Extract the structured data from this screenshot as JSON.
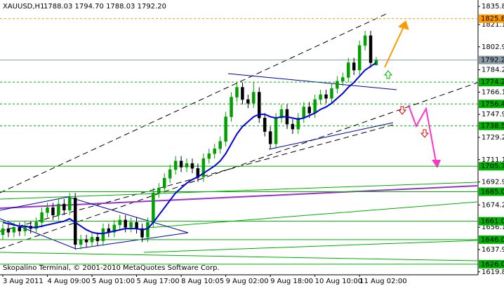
{
  "chart_data": {
    "type": "candlestick",
    "title": "XAUUSD,H1",
    "subtitle": "1788.03 1794.70 1788.03 1792.20",
    "footer": "Skopalino Terminal, © 2001-2010 MetaQuotes Software Corp.",
    "categories": [
      "3 Aug 2011",
      null,
      null,
      null,
      null,
      null,
      null,
      null,
      "4 Aug 09:00",
      null,
      null,
      null,
      null,
      null,
      null,
      null,
      "5 Aug 01:00",
      null,
      null,
      null,
      null,
      null,
      null,
      null,
      "5 Aug 17:00",
      null,
      null,
      null,
      null,
      null,
      null,
      null,
      "8 Aug 10:05",
      null,
      null,
      null,
      null,
      null,
      null,
      null,
      "9 Aug 02:00",
      null,
      null,
      null,
      null,
      null,
      null,
      null,
      "9 Aug 18:00",
      null,
      null,
      null,
      null,
      null,
      null,
      null,
      "10 Aug 10:00",
      null,
      null,
      null,
      null,
      null,
      null,
      null,
      "11 Aug 02:00",
      null,
      null,
      null
    ],
    "open": [
      1650,
      1655,
      1652,
      1656,
      1653,
      1657,
      1655,
      1660,
      1668,
      1672,
      1666,
      1675,
      1670,
      1680,
      1642,
      1646,
      1644,
      1648,
      1645,
      1655,
      1652,
      1658,
      1662,
      1656,
      1660,
      1655,
      1648,
      1660,
      1684,
      1688,
      1696,
      1703,
      1710,
      1705,
      1708,
      1704,
      1697,
      1712,
      1716,
      1720,
      1726,
      1746,
      1762,
      1770,
      1760,
      1757,
      1766,
      1745,
      1734,
      1724,
      1745,
      1752,
      1740,
      1736,
      1745,
      1754,
      1749,
      1760,
      1764,
      1761,
      1769,
      1775,
      1778,
      1790,
      1784,
      1804,
      1812,
      1788.03
    ],
    "high": [
      1659,
      1659,
      1660,
      1660,
      1661,
      1661,
      1664,
      1672,
      1676,
      1676,
      1679,
      1679,
      1684,
      1684,
      1650,
      1650,
      1652,
      1652,
      1659,
      1659,
      1662,
      1666,
      1666,
      1664,
      1664,
      1659,
      1664,
      1688,
      1692,
      1700,
      1707,
      1714,
      1714,
      1712,
      1712,
      1708,
      1716,
      1720,
      1724,
      1730,
      1750,
      1766,
      1774,
      1774,
      1764,
      1774,
      1770,
      1749,
      1738,
      1749,
      1756,
      1756,
      1744,
      1749,
      1758,
      1758,
      1764,
      1768,
      1768,
      1773,
      1779,
      1782,
      1794,
      1794,
      1808,
      1816,
      1816,
      1794.7
    ],
    "low": [
      1646,
      1648,
      1648,
      1649,
      1649,
      1651,
      1651,
      1656,
      1664,
      1662,
      1662,
      1666,
      1666,
      1638,
      1638,
      1640,
      1640,
      1641,
      1641,
      1648,
      1648,
      1654,
      1652,
      1652,
      1651,
      1644,
      1644,
      1656,
      1680,
      1684,
      1692,
      1699,
      1701,
      1701,
      1700,
      1693,
      1693,
      1708,
      1712,
      1716,
      1722,
      1742,
      1758,
      1756,
      1753,
      1753,
      1741,
      1730,
      1720,
      1720,
      1741,
      1736,
      1732,
      1732,
      1741,
      1745,
      1745,
      1756,
      1757,
      1757,
      1765,
      1771,
      1774,
      1780,
      1780,
      1800,
      1786,
      1788.03
    ],
    "close": [
      1655,
      1652,
      1656,
      1653,
      1657,
      1655,
      1660,
      1668,
      1672,
      1666,
      1675,
      1670,
      1680,
      1642,
      1646,
      1644,
      1648,
      1645,
      1655,
      1652,
      1658,
      1662,
      1656,
      1660,
      1655,
      1648,
      1660,
      1684,
      1688,
      1696,
      1703,
      1710,
      1705,
      1708,
      1704,
      1697,
      1712,
      1716,
      1720,
      1726,
      1746,
      1762,
      1770,
      1760,
      1757,
      1766,
      1745,
      1734,
      1724,
      1745,
      1752,
      1740,
      1736,
      1745,
      1754,
      1749,
      1760,
      1764,
      1761,
      1769,
      1775,
      1778,
      1790,
      1784,
      1804,
      1812,
      1790,
      1792.2
    ],
    "up_color": "#00a000",
    "down_color": "#000000",
    "ma": {
      "color": "#0000dd",
      "values": [
        1660,
        1659,
        1658,
        1657,
        1657,
        1656,
        1656,
        1657,
        1658,
        1659,
        1660,
        1661,
        1663,
        1660,
        1657,
        1654,
        1652,
        1651,
        1651,
        1652,
        1653,
        1654,
        1655,
        1655,
        1655,
        1654,
        1655,
        1660,
        1666,
        1672,
        1678,
        1684,
        1688,
        1692,
        1695,
        1697,
        1700,
        1703,
        1706,
        1710,
        1716,
        1724,
        1732,
        1738,
        1742,
        1746,
        1748,
        1748,
        1746,
        1745,
        1746,
        1746,
        1745,
        1744,
        1745,
        1747,
        1749,
        1752,
        1754,
        1757,
        1761,
        1765,
        1770,
        1774,
        1779,
        1784,
        1787,
        1790
      ]
    },
    "ylim": [
      1617.4,
      1839.9
    ],
    "yticks": [
      1835.85,
      {
        "value": 1821.1,
        "label": "1821.10"
      },
      1802.95,
      1784.25,
      {
        "value": 1766.1,
        "label": "1766.10"
      },
      1747.95,
      1729.25,
      {
        "value": 1711.1,
        "label": "1711.10"
      },
      1692.95,
      1674.25,
      {
        "value": 1656.1,
        "label": "1656.10"
      },
      1637.95,
      1619.8
    ],
    "levels": [
      {
        "value": 1825.85,
        "color": "#ff9900",
        "dashed": true
      },
      {
        "value": 1792.2,
        "label": "1792.20",
        "color": "#8a99a6",
        "dashed": false
      },
      {
        "value": 1774.21,
        "color": "#00b000",
        "dashed": true
      },
      {
        "value": 1756.44,
        "color": "#00b000",
        "dashed": true
      },
      {
        "value": 1738.58,
        "color": "#00b000",
        "dashed": true
      },
      {
        "value": 1705.73,
        "color": "#00b000",
        "dashed": false
      },
      {
        "value": 1685,
        "label": "1685.00",
        "color": "#00b000",
        "dashed": false
      },
      {
        "value": 1661,
        "label": "1661.00",
        "color": "#00b000",
        "dashed": false
      },
      {
        "value": 1646,
        "label": "1646.00",
        "color": "#00b000",
        "dashed": false
      },
      {
        "value": 1626,
        "label": "1626.00",
        "color": "#00b000",
        "dashed": false
      }
    ]
  }
}
